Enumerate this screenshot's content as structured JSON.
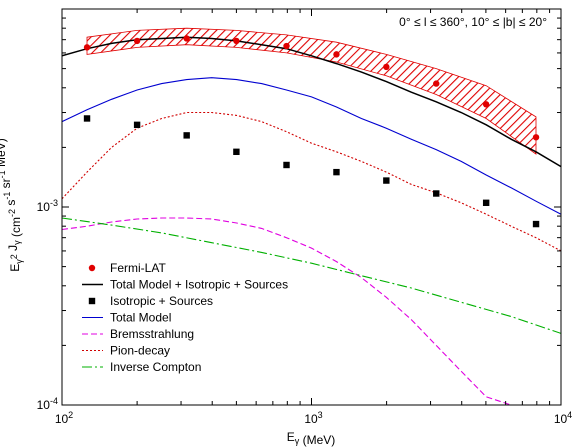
{
  "chart_data": {
    "type": "line",
    "title": "",
    "annotation": "0° ≤ l ≤ 360°, 10° ≤ |b| ≤ 20°",
    "xlabel": "E_γ (MeV)",
    "ylabel": "E_γ² J_γ (cm⁻² s⁻¹ sr⁻¹ MeV)",
    "xscale": "log",
    "yscale": "log",
    "xlim": [
      100,
      10000
    ],
    "ylim": [
      0.0001,
      0.01
    ],
    "x_tick_labels": [
      {
        "mant": "10",
        "exp": "2"
      },
      {
        "mant": "10",
        "exp": "3"
      },
      {
        "mant": "10",
        "exp": "4"
      }
    ],
    "y_tick_labels": [
      {
        "mant": "10",
        "exp": "-4"
      },
      {
        "mant": "10",
        "exp": "-3"
      }
    ],
    "legend_position": "lower-left",
    "series": [
      {
        "name": "Fermi-LAT",
        "kind": "points",
        "marker": "circle",
        "color": "#e00000",
        "x": [
          126,
          200,
          316,
          500,
          794,
          1259,
          1995,
          3162,
          5012,
          7943
        ],
        "y": [
          0.0064,
          0.0069,
          0.0071,
          0.0069,
          0.0065,
          0.0059,
          0.0051,
          0.0042,
          0.0033,
          0.00225
        ],
        "band_lo": [
          0.0059,
          0.0064,
          0.0066,
          0.0064,
          0.006,
          0.0054,
          0.0046,
          0.0037,
          0.0028,
          0.00185
        ],
        "band_hi": [
          0.0072,
          0.0078,
          0.008,
          0.0078,
          0.0074,
          0.0068,
          0.0059,
          0.005,
          0.0041,
          0.00285
        ]
      },
      {
        "name": "Total Model + Isotropic + Sources",
        "kind": "line",
        "color": "#000000",
        "dash": "",
        "x": [
          100,
          126,
          158,
          200,
          251,
          316,
          398,
          501,
          631,
          794,
          1000,
          1259,
          1585,
          1995,
          2512,
          3162,
          3981,
          5012,
          6310,
          7943,
          10000
        ],
        "y": [
          0.0058,
          0.0063,
          0.0067,
          0.007,
          0.0071,
          0.0072,
          0.0071,
          0.0069,
          0.0066,
          0.0063,
          0.0058,
          0.0053,
          0.0048,
          0.0043,
          0.0038,
          0.0034,
          0.003,
          0.0026,
          0.0022,
          0.0019,
          0.0016
        ]
      },
      {
        "name": "Isotropic + Sources",
        "kind": "points",
        "marker": "square",
        "color": "#000000",
        "x": [
          126,
          200,
          316,
          500,
          794,
          1259,
          1995,
          3162,
          5012,
          7943
        ],
        "y": [
          0.0028,
          0.0026,
          0.0023,
          0.0019,
          0.00163,
          0.0015,
          0.00136,
          0.00117,
          0.00105,
          0.00082
        ]
      },
      {
        "name": "Total Model",
        "kind": "line",
        "color": "#0000d0",
        "dash": "",
        "x": [
          100,
          126,
          158,
          200,
          251,
          316,
          398,
          501,
          631,
          794,
          1000,
          1259,
          1585,
          1995,
          2512,
          3162,
          3981,
          5012,
          6310,
          7943,
          10000
        ],
        "y": [
          0.0027,
          0.0031,
          0.0035,
          0.0039,
          0.0042,
          0.0044,
          0.0045,
          0.0044,
          0.0042,
          0.0039,
          0.0036,
          0.0032,
          0.0028,
          0.0025,
          0.0022,
          0.00195,
          0.0017,
          0.00145,
          0.00125,
          0.00107,
          0.00092
        ]
      },
      {
        "name": "Bremsstrahlung",
        "kind": "line",
        "color": "#e000e0",
        "dash": "6,3",
        "x": [
          100,
          126,
          158,
          200,
          251,
          316,
          398,
          501,
          631,
          794,
          1000,
          1259,
          1585,
          1995,
          2512,
          3162,
          3981,
          5012,
          6310
        ],
        "y": [
          0.00077,
          0.0008,
          0.00084,
          0.00087,
          0.00088,
          0.00088,
          0.00087,
          0.00083,
          0.00078,
          0.0007,
          0.00062,
          0.00053,
          0.00044,
          0.00035,
          0.00027,
          0.0002,
          0.000148,
          0.00011,
          0.0001
        ]
      },
      {
        "name": "Pion-decay",
        "kind": "line",
        "color": "#d00000",
        "dash": "2,2",
        "x": [
          100,
          126,
          158,
          200,
          251,
          316,
          398,
          501,
          631,
          794,
          1000,
          1259,
          1585,
          1995,
          2512,
          3162,
          3981,
          5012,
          6310,
          7943,
          10000
        ],
        "y": [
          0.0011,
          0.0015,
          0.002,
          0.0025,
          0.0028,
          0.003,
          0.003,
          0.0029,
          0.0027,
          0.0024,
          0.0021,
          0.0019,
          0.0017,
          0.0015,
          0.0013,
          0.00118,
          0.00105,
          0.00092,
          0.0008,
          0.0007,
          0.0006
        ]
      },
      {
        "name": "Inverse Compton",
        "kind": "line",
        "color": "#00b000",
        "dash": "10,3,2,3",
        "x": [
          100,
          158,
          251,
          398,
          631,
          1000,
          1585,
          2512,
          3981,
          6310,
          10000
        ],
        "y": [
          0.00088,
          0.00081,
          0.00074,
          0.00066,
          0.00059,
          0.00052,
          0.00045,
          0.00039,
          0.00033,
          0.00028,
          0.00023
        ]
      }
    ]
  }
}
